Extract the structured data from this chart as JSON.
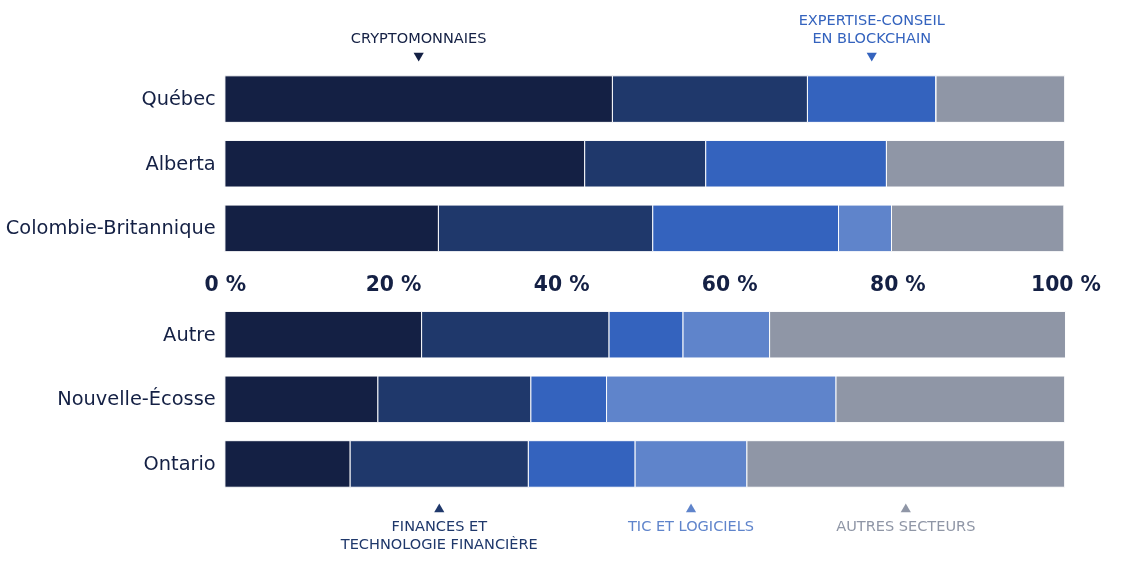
{
  "chart_data": [
    {
      "type": "bar",
      "orientation": "horizontal",
      "stacked": true,
      "legend": "top",
      "categories": [
        "Québec",
        "Alberta",
        "Colombie-Britannique"
      ],
      "xlim": [
        0,
        100
      ],
      "xticks": [
        {
          "value": 0,
          "label": "0 %"
        },
        {
          "value": 20,
          "label": "20 %"
        },
        {
          "value": 40,
          "label": "40 %"
        },
        {
          "value": 60,
          "label": "60 %"
        },
        {
          "value": 80,
          "label": "80 %"
        },
        {
          "value": 100,
          "label": "100 %"
        }
      ],
      "series": [
        {
          "name": "CRYPTOMONNAIES",
          "color": "#142044",
          "values": [
            46.1,
            42.8,
            25.4
          ]
        },
        {
          "color": "#1f386b",
          "values": [
            23.2,
            14.4,
            25.5
          ]
        },
        {
          "name": "EXPERTISE-CONSEIL\nEN BLOCKCHAIN",
          "color": "#3463be",
          "values": [
            15.3,
            21.5,
            22.1
          ]
        },
        {
          "color": "#5f84cb",
          "values": [
            0,
            0,
            6.3
          ]
        },
        {
          "color": "#8f96a6",
          "values": [
            15.3,
            21.2,
            20.5
          ]
        }
      ]
    },
    {
      "type": "bar",
      "orientation": "horizontal",
      "stacked": true,
      "legend": "bottom",
      "tick_labels": "y",
      "categories": [
        "Autre",
        "Nouvelle-Écosse",
        "Ontario"
      ],
      "xlim": [
        0,
        100
      ],
      "series": [
        {
          "color": "#142044",
          "values": [
            23.4,
            18.2,
            14.9
          ]
        },
        {
          "name": "FINANCES ET\nTECHNOLOGIE FINANCIÈRE",
          "color": "#1f386b",
          "values": [
            22.3,
            18.2,
            21.2
          ]
        },
        {
          "color": "#3463be",
          "values": [
            8.8,
            9.0,
            12.7
          ]
        },
        {
          "name": "TIC ET LOGICIELS",
          "color": "#5f84cb",
          "values": [
            10.3,
            27.3,
            13.3
          ]
        },
        {
          "name": "AUTRES SECTEURS",
          "color": "#8f96a6",
          "values": [
            35.2,
            27.2,
            37.8
          ]
        }
      ]
    }
  ]
}
